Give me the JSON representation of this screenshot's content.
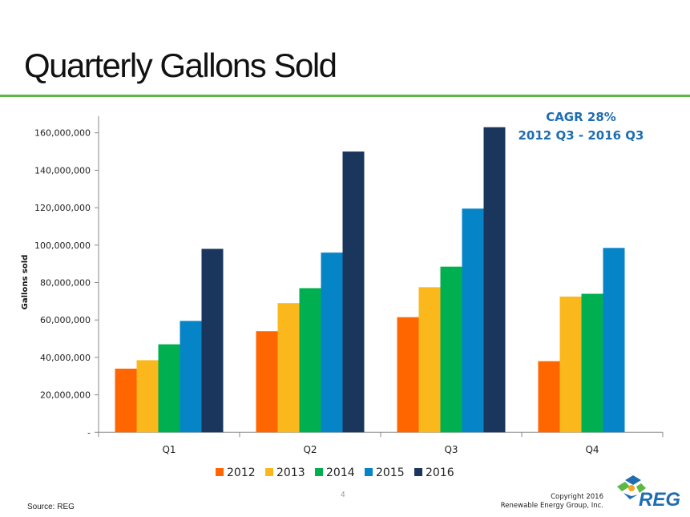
{
  "slide": {
    "title": "Quarterly Gallons Sold",
    "annotation_line1": "CAGR 28%",
    "annotation_line2": "2012 Q3 - 2016 Q3",
    "page_number": "4",
    "source": "Source: REG",
    "copyright_line1": "Copyright 2016",
    "copyright_line2": "Renewable Energy Group, Inc.",
    "logo_text": "REG",
    "accent_color": "#5cb946"
  },
  "chart_data": {
    "type": "bar",
    "title": "",
    "xlabel": "",
    "ylabel": "Gallons sold",
    "categories": [
      "Q1",
      "Q2",
      "Q3",
      "Q4"
    ],
    "ylim": [
      0,
      160000000
    ],
    "yticks": [
      0,
      20000000,
      40000000,
      60000000,
      80000000,
      100000000,
      120000000,
      140000000,
      160000000
    ],
    "ytick_labels": [
      "-",
      "20,000,000",
      "40,000,000",
      "60,000,000",
      "80,000,000",
      "100,000,000",
      "120,000,000",
      "140,000,000",
      "160,000,000"
    ],
    "grid": false,
    "legend_position": "bottom",
    "series": [
      {
        "name": "2012",
        "color": "#ff6600",
        "values": [
          34000000,
          54000000,
          61500000,
          38000000
        ]
      },
      {
        "name": "2013",
        "color": "#fbb81c",
        "values": [
          38500000,
          69000000,
          77500000,
          72500000
        ]
      },
      {
        "name": "2014",
        "color": "#00b050",
        "values": [
          47000000,
          77000000,
          88500000,
          74000000
        ]
      },
      {
        "name": "2015",
        "color": "#0584c8",
        "values": [
          59500000,
          96000000,
          119500000,
          98500000
        ]
      },
      {
        "name": "2016",
        "color": "#1b365d",
        "values": [
          98000000,
          150000000,
          163000000,
          null
        ]
      }
    ]
  }
}
